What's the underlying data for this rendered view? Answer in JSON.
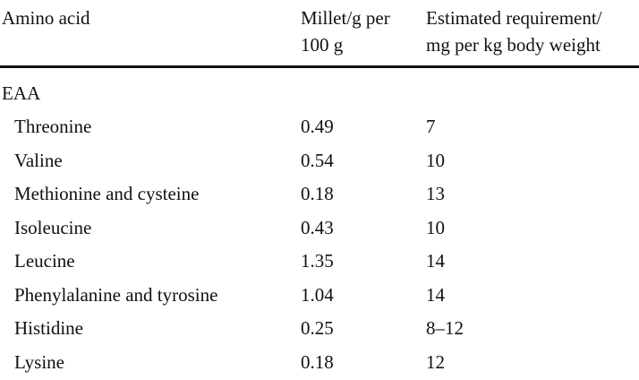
{
  "table": {
    "header": [
      [
        "Amino acid"
      ],
      [
        "Millet/g per",
        "100 g"
      ],
      [
        "Estimated requirement/",
        "mg per kg body weight"
      ]
    ],
    "section": "EAA",
    "rows": [
      [
        "Threonine",
        "0.49",
        "7"
      ],
      [
        "Valine",
        "0.54",
        "10"
      ],
      [
        "Methionine and cysteine",
        "0.18",
        "13"
      ],
      [
        "Isoleucine",
        "0.43",
        "10"
      ],
      [
        "Leucine",
        "1.35",
        "14"
      ],
      [
        "Phenylalanine and tyrosine",
        "1.04",
        "14"
      ],
      [
        "Histidine",
        "0.25",
        "8–12"
      ],
      [
        "Lysine",
        "0.18",
        "12"
      ]
    ]
  }
}
